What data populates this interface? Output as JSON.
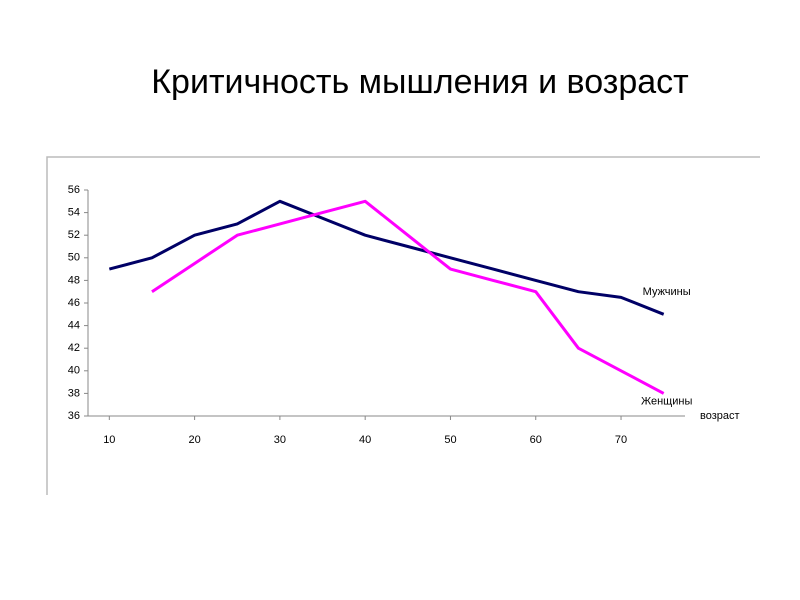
{
  "chart_data": {
    "type": "line",
    "title": "Критичность мышления и возраст",
    "x_label": "возраст",
    "x": [
      10,
      15,
      20,
      25,
      30,
      35,
      40,
      45,
      50,
      55,
      60,
      65,
      70,
      75
    ],
    "series": [
      {
        "name": "Мужчины",
        "color": "#000066",
        "values": [
          49,
          50,
          52,
          53,
          55,
          53.5,
          52,
          51,
          50,
          49,
          48,
          47,
          46.5,
          45
        ]
      },
      {
        "name": "Женщины",
        "color": "#ff00ff",
        "values": [
          null,
          47,
          49.5,
          52,
          53,
          54,
          55,
          52,
          49,
          48,
          47,
          42,
          40,
          38
        ]
      }
    ],
    "xlim": [
      7.5,
      77.5
    ],
    "xticks": [
      10,
      20,
      30,
      40,
      50,
      60,
      70
    ],
    "ylim": [
      36,
      56
    ],
    "yticks": [
      36,
      38,
      40,
      42,
      44,
      46,
      48,
      50,
      52,
      54,
      56
    ],
    "grid": false
  }
}
